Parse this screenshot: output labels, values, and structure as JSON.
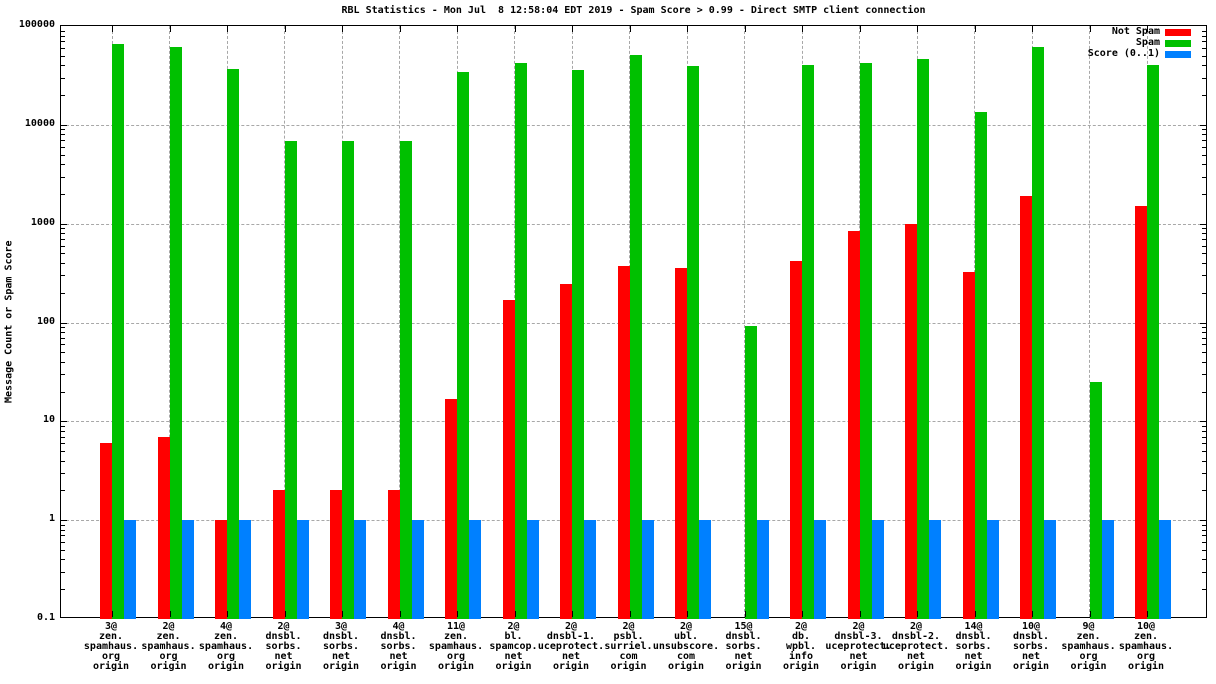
{
  "title": "RBL Statistics - Mon Jul  8 12:58:04 EDT 2019 - Spam Score > 0.99 - Direct SMTP client connection",
  "colors": {
    "not_spam": "#ff0000",
    "spam": "#00c000",
    "score": "#0080ff",
    "grid": "#a8a8a8",
    "axis": "#000000",
    "background": "#ffffff"
  },
  "chart_data": {
    "type": "bar",
    "scale": "log",
    "title": "RBL Statistics - Mon Jul  8 12:58:04 EDT 2019 - Spam Score > 0.99 - Direct SMTP client connection",
    "xlabel": "",
    "ylabel": "Message Count or Spam Score",
    "ylim": [
      0.1,
      100000
    ],
    "yticks": [
      "100000",
      "10000",
      "1000",
      "100",
      "10",
      "1",
      "0.1"
    ],
    "grid": true,
    "legend_position": "top-right",
    "categories": [
      "3@\nzen.\nspamhaus.\norg\norigin",
      "2@\nzen.\nspamhaus.\norg\norigin",
      "4@\nzen.\nspamhaus.\norg\norigin",
      "2@\ndnsbl.\nsorbs.\nnet\norigin",
      "3@\ndnsbl.\nsorbs.\nnet\norigin",
      "4@\ndnsbl.\nsorbs.\nnet\norigin",
      "11@\nzen.\nspamhaus.\norg\norigin",
      "2@\nbl.\nspamcop.\nnet\norigin",
      "2@\ndnsbl-1.\nuceprotect.\nnet\norigin",
      "2@\npsbl.\nsurriel.\ncom\norigin",
      "2@\nubl.\nunsubscore.\ncom\norigin",
      "15@\ndnsbl.\nsorbs.\nnet\norigin",
      "2@\ndb.\nwpbl.\ninfo\norigin",
      "2@\ndnsbl-3.\nuceprotect.\nnet\norigin",
      "2@\ndnsbl-2.\nuceprotect.\nnet\norigin",
      "14@\ndnsbl.\nsorbs.\nnet\norigin",
      "10@\ndnsbl.\nsorbs.\nnet\norigin",
      "9@\nzen.\nspamhaus.\norg\norigin",
      "10@\nzen.\nspamhaus.\norg\norigin"
    ],
    "series": [
      {
        "name": "Not Spam",
        "color": "#ff0000",
        "values": [
          6,
          7,
          1,
          2,
          2,
          2,
          17,
          170,
          245,
          370,
          355,
          null,
          420,
          840,
          1000,
          325,
          1900,
          null,
          1500
        ]
      },
      {
        "name": "Spam",
        "color": "#00c000",
        "values": [
          66000,
          62000,
          37000,
          6900,
          6900,
          6900,
          34000,
          42000,
          36000,
          51000,
          39000,
          93,
          40000,
          42000,
          46000,
          13500,
          62000,
          25,
          40000
        ]
      },
      {
        "name": "Score (0..1)",
        "color": "#0080ff",
        "values": [
          1,
          1,
          1,
          1,
          1,
          1,
          1,
          1,
          1,
          1,
          1,
          1,
          1,
          1,
          1,
          1,
          1,
          1,
          1
        ]
      }
    ]
  }
}
